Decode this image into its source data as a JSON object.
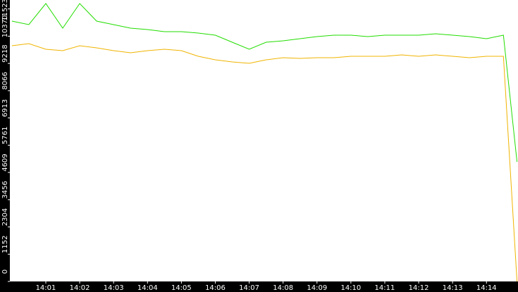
{
  "chart_data": {
    "type": "line",
    "x": [
      840,
      840.5,
      841,
      841.5,
      842,
      842.5,
      843,
      843.5,
      844,
      844.5,
      845,
      845.5,
      846,
      846.5,
      847,
      847.5,
      848,
      848.5,
      849,
      849.5,
      850,
      850.5,
      851,
      851.5,
      852,
      852.5,
      853,
      853.5,
      854,
      854.5,
      854.9
    ],
    "series": [
      {
        "color": "#22dd00",
        "values": [
          11008,
          10859,
          11751,
          10710,
          11751,
          11008,
          10859,
          10710,
          10651,
          10561,
          10561,
          10502,
          10413,
          10115,
          9818,
          10115,
          10175,
          10264,
          10353,
          10413,
          10413,
          10353,
          10413,
          10413,
          10413,
          10472,
          10413,
          10353,
          10264,
          10413,
          5058
        ]
      },
      {
        "color": "#f0b400",
        "values": [
          9966,
          10055,
          9818,
          9758,
          9966,
          9877,
          9758,
          9669,
          9758,
          9818,
          9758,
          9520,
          9371,
          9282,
          9223,
          9371,
          9461,
          9431,
          9461,
          9461,
          9520,
          9520,
          9520,
          9580,
          9520,
          9580,
          9520,
          9461,
          9520,
          9520,
          0
        ]
      }
    ],
    "xlim": [
      839.94,
      854.93
    ],
    "xticks": [
      {
        "value": 841,
        "label": "14:01"
      },
      {
        "value": 842,
        "label": "14:02"
      },
      {
        "value": 843,
        "label": "14:03"
      },
      {
        "value": 844,
        "label": "14:04"
      },
      {
        "value": 845,
        "label": "14:05"
      },
      {
        "value": 846,
        "label": "14:06"
      },
      {
        "value": 847,
        "label": "14:07"
      },
      {
        "value": 848,
        "label": "14:08"
      },
      {
        "value": 849,
        "label": "14:09"
      },
      {
        "value": 850,
        "label": "14:10"
      },
      {
        "value": 851,
        "label": "14:11"
      },
      {
        "value": 852,
        "label": "14:12"
      },
      {
        "value": 853,
        "label": "14:13"
      },
      {
        "value": 854,
        "label": "14:14"
      }
    ],
    "ylim": [
      0,
      11900
    ],
    "yticks": [
      0,
      1152,
      2304,
      3456,
      4609,
      5761,
      6913,
      8066,
      9218,
      10370,
      11523
    ]
  }
}
